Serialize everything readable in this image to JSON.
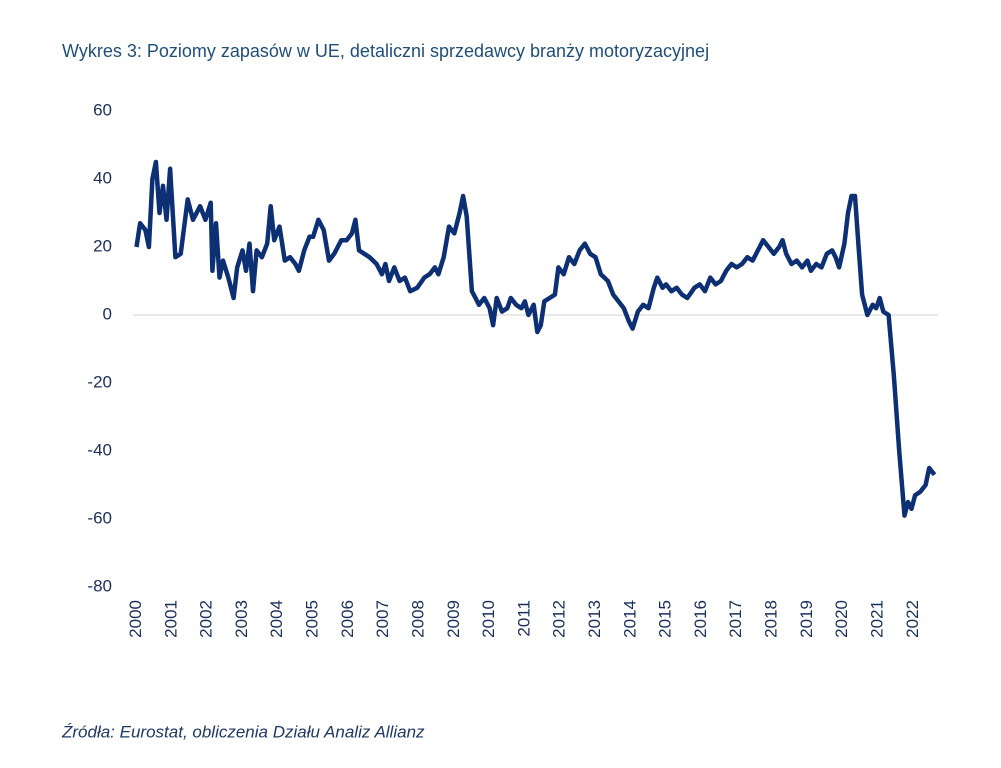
{
  "chart_data": {
    "type": "line",
    "title": "Wykres 3: Poziomy zapasów w UE, detaliczni sprzedawcy branży motoryzacyjnej",
    "source": "Źródła: Eurostat, obliczenia Działu Analiz Allianz",
    "x": [
      2000.0,
      2000.1,
      2000.25,
      2000.35,
      2000.45,
      2000.55,
      2000.65,
      2000.75,
      2000.85,
      2000.95,
      2001.1,
      2001.25,
      2001.45,
      2001.6,
      2001.8,
      2001.95,
      2002.1,
      2002.15,
      2002.25,
      2002.35,
      2002.45,
      2002.6,
      2002.75,
      2002.85,
      2003.0,
      2003.1,
      2003.2,
      2003.3,
      2003.4,
      2003.55,
      2003.7,
      2003.8,
      2003.9,
      2004.05,
      2004.2,
      2004.35,
      2004.5,
      2004.6,
      2004.75,
      2004.9,
      2005.0,
      2005.15,
      2005.3,
      2005.45,
      2005.6,
      2005.8,
      2005.95,
      2006.1,
      2006.2,
      2006.3,
      2006.45,
      2006.6,
      2006.8,
      2006.95,
      2007.05,
      2007.15,
      2007.3,
      2007.45,
      2007.6,
      2007.75,
      2007.95,
      2008.15,
      2008.3,
      2008.45,
      2008.55,
      2008.7,
      2008.85,
      2009.0,
      2009.15,
      2009.25,
      2009.35,
      2009.5,
      2009.6,
      2009.7,
      2009.85,
      2010.0,
      2010.1,
      2010.2,
      2010.35,
      2010.5,
      2010.6,
      2010.75,
      2010.9,
      2011.0,
      2011.1,
      2011.25,
      2011.35,
      2011.45,
      2011.55,
      2011.7,
      2011.85,
      2011.95,
      2012.1,
      2012.25,
      2012.4,
      2012.55,
      2012.7,
      2012.85,
      2013.0,
      2013.15,
      2013.35,
      2013.5,
      2013.65,
      2013.8,
      2013.95,
      2014.05,
      2014.2,
      2014.35,
      2014.5,
      2014.65,
      2014.75,
      2014.9,
      2015.0,
      2015.15,
      2015.3,
      2015.45,
      2015.6,
      2015.8,
      2015.95,
      2016.1,
      2016.25,
      2016.4,
      2016.55,
      2016.7,
      2016.85,
      2017.0,
      2017.15,
      2017.3,
      2017.45,
      2017.6,
      2017.75,
      2017.9,
      2018.05,
      2018.2,
      2018.3,
      2018.4,
      2018.55,
      2018.7,
      2018.85,
      2019.0,
      2019.1,
      2019.25,
      2019.4,
      2019.55,
      2019.7,
      2019.8,
      2019.9,
      2020.05,
      2020.15,
      2020.25,
      2020.35,
      2020.45,
      2020.55,
      2020.7,
      2020.85,
      2020.95,
      2021.05,
      2021.15,
      2021.3,
      2021.45,
      2021.6,
      2021.75,
      2021.85,
      2021.95,
      2022.05,
      2022.2,
      2022.35,
      2022.45,
      2022.6
    ],
    "series": [
      {
        "color": "#0d2f73",
        "values": [
          20,
          27,
          25,
          20,
          40,
          45,
          30,
          38,
          28,
          43,
          17,
          18,
          34,
          28,
          32,
          28,
          33,
          13,
          27,
          11,
          16,
          11,
          5,
          14,
          19,
          13,
          21,
          7,
          19,
          17,
          21,
          32,
          22,
          26,
          16,
          17,
          15,
          13,
          19,
          23,
          23,
          28,
          25,
          16,
          18,
          22,
          22,
          24,
          28,
          19,
          18,
          17,
          15,
          12,
          15,
          10,
          14,
          10,
          11,
          7,
          8,
          11,
          12,
          14,
          12,
          17,
          26,
          24,
          30,
          35,
          29,
          7,
          5,
          3,
          5,
          2,
          -3,
          5,
          1,
          2,
          5,
          3,
          2,
          4,
          0,
          3,
          -5,
          -3,
          4,
          5,
          6,
          14,
          12,
          17,
          15,
          19,
          21,
          18,
          17,
          12,
          10,
          6,
          4,
          2,
          -2,
          -4,
          1,
          3,
          2,
          8,
          11,
          8,
          9,
          7,
          8,
          6,
          5,
          8,
          9,
          7,
          11,
          9,
          10,
          13,
          15,
          14,
          15,
          17,
          16,
          19,
          22,
          20,
          18,
          20,
          22,
          18,
          15,
          16,
          14,
          16,
          13,
          15,
          14,
          18,
          19,
          17,
          14,
          21,
          30,
          35,
          35,
          20,
          6,
          0,
          3,
          2,
          5,
          1,
          0,
          -18,
          -40,
          -59,
          -55,
          -57,
          -53,
          -52,
          -50,
          -45,
          -47
        ]
      }
    ],
    "xlim": [
      1999.9,
      2022.7
    ],
    "xticks": [
      2000,
      2001,
      2002,
      2003,
      2004,
      2005,
      2006,
      2007,
      2008,
      2009,
      2010,
      2011,
      2012,
      2013,
      2014,
      2015,
      2016,
      2017,
      2018,
      2019,
      2020,
      2021,
      2022
    ],
    "ylim": [
      -80,
      60
    ],
    "yticks": [
      -80,
      -60,
      -40,
      -20,
      0,
      20,
      40,
      60
    ]
  }
}
